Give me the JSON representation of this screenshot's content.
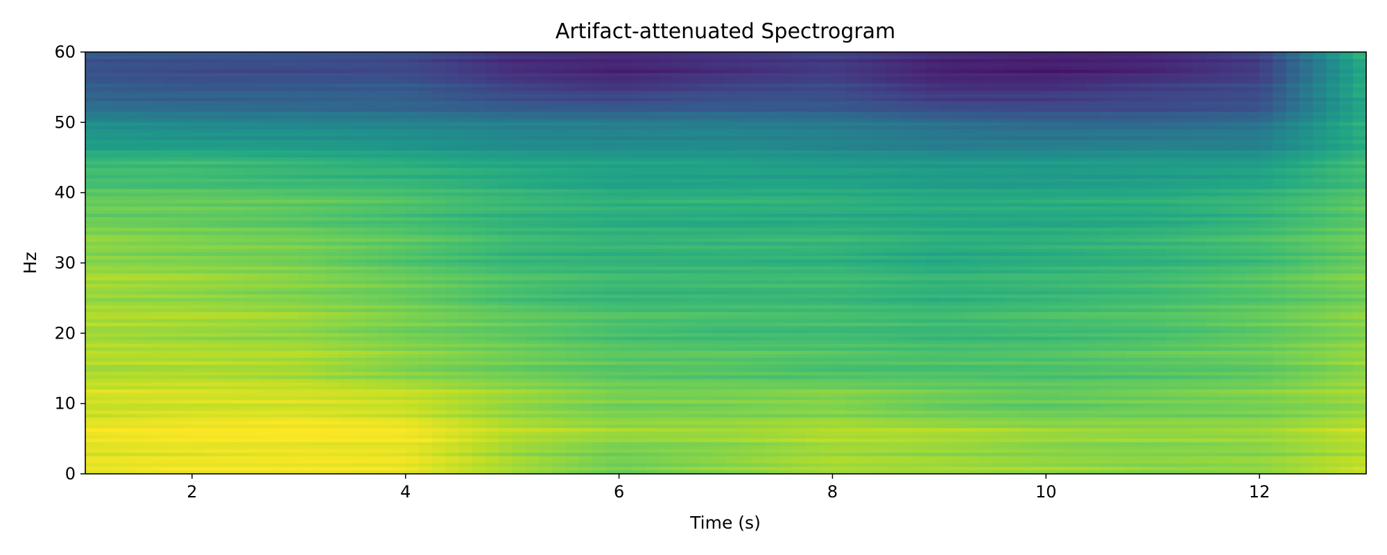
{
  "chart_data": {
    "type": "heatmap",
    "title": "Artifact-attenuated Spectrogram",
    "xlabel": "Time (s)",
    "ylabel": "Hz",
    "xlim": [
      1,
      13
    ],
    "ylim": [
      0,
      60
    ],
    "x_ticks": [
      2,
      4,
      6,
      8,
      10,
      12
    ],
    "y_ticks": [
      0,
      10,
      20,
      30,
      40,
      50,
      60
    ],
    "colormap": "viridis",
    "grid": false,
    "legend": "none",
    "x": [
      1,
      2,
      3,
      4,
      5,
      6,
      7,
      8,
      9,
      10,
      11,
      12,
      13
    ],
    "y": [
      0,
      5,
      10,
      15,
      20,
      25,
      30,
      35,
      40,
      45,
      50,
      55,
      60
    ],
    "z_normalized": [
      [
        0.95,
        0.96,
        0.96,
        0.95,
        0.85,
        0.75,
        0.8,
        0.85,
        0.84,
        0.82,
        0.8,
        0.82,
        0.9
      ],
      [
        0.97,
        0.99,
        1.0,
        0.99,
        0.88,
        0.84,
        0.85,
        0.88,
        0.87,
        0.85,
        0.84,
        0.84,
        0.9
      ],
      [
        0.93,
        0.94,
        0.94,
        0.92,
        0.85,
        0.8,
        0.8,
        0.82,
        0.78,
        0.76,
        0.78,
        0.8,
        0.85
      ],
      [
        0.88,
        0.88,
        0.87,
        0.82,
        0.78,
        0.74,
        0.74,
        0.72,
        0.72,
        0.72,
        0.74,
        0.76,
        0.84
      ],
      [
        0.87,
        0.86,
        0.85,
        0.8,
        0.76,
        0.72,
        0.7,
        0.7,
        0.68,
        0.7,
        0.72,
        0.76,
        0.82
      ],
      [
        0.86,
        0.85,
        0.82,
        0.78,
        0.72,
        0.68,
        0.68,
        0.68,
        0.66,
        0.68,
        0.7,
        0.74,
        0.8
      ],
      [
        0.84,
        0.82,
        0.8,
        0.74,
        0.68,
        0.66,
        0.66,
        0.66,
        0.62,
        0.64,
        0.66,
        0.7,
        0.78
      ],
      [
        0.8,
        0.78,
        0.76,
        0.72,
        0.66,
        0.64,
        0.64,
        0.64,
        0.62,
        0.62,
        0.64,
        0.68,
        0.76
      ],
      [
        0.74,
        0.74,
        0.72,
        0.7,
        0.66,
        0.62,
        0.62,
        0.62,
        0.6,
        0.6,
        0.6,
        0.64,
        0.72
      ],
      [
        0.64,
        0.64,
        0.62,
        0.6,
        0.56,
        0.54,
        0.54,
        0.52,
        0.5,
        0.5,
        0.52,
        0.52,
        0.66
      ],
      [
        0.46,
        0.44,
        0.44,
        0.42,
        0.4,
        0.4,
        0.4,
        0.38,
        0.34,
        0.32,
        0.32,
        0.34,
        0.62
      ],
      [
        0.28,
        0.26,
        0.26,
        0.26,
        0.18,
        0.14,
        0.18,
        0.2,
        0.12,
        0.12,
        0.16,
        0.2,
        0.62
      ],
      [
        0.26,
        0.24,
        0.24,
        0.22,
        0.12,
        0.1,
        0.14,
        0.18,
        0.1,
        0.08,
        0.1,
        0.18,
        0.64
      ]
    ]
  }
}
